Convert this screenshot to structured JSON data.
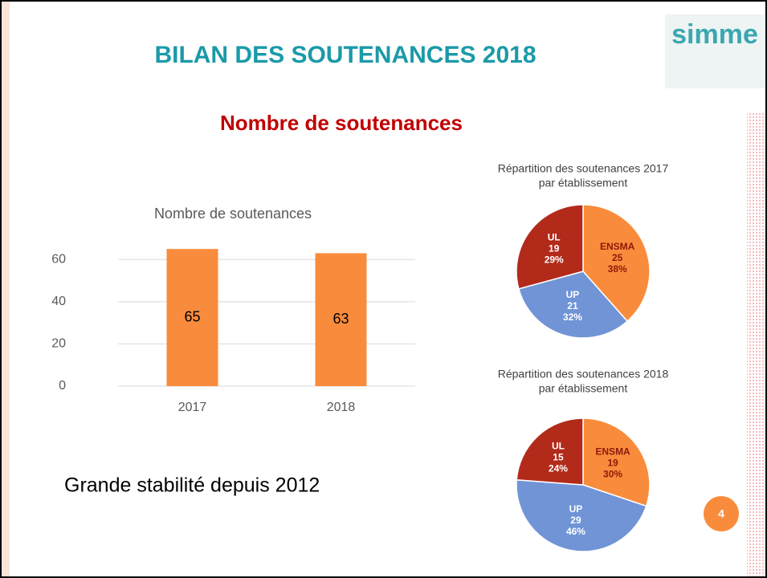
{
  "title": "BILAN DES SOUTENANCES 2018",
  "subtitle": "Nombre de soutenances",
  "note": "Grande stabilité depuis 2012",
  "logo": "simme",
  "page_number": "4",
  "chart_data": [
    {
      "type": "bar",
      "title": "Nombre de soutenances",
      "categories": [
        "2017",
        "2018"
      ],
      "values": [
        65,
        63
      ],
      "color": "#f98c3c",
      "ylim": [
        0,
        70
      ],
      "yticks": [
        0,
        20,
        40,
        60
      ],
      "grid": true
    },
    {
      "type": "pie",
      "title": [
        "Répartition des soutenances 2017",
        "par établissement"
      ],
      "categories": [
        "ENSMA",
        "UP",
        "UL"
      ],
      "values": [
        25,
        21,
        19
      ],
      "percent_labels": [
        "38%",
        "32%",
        "29%"
      ],
      "colors": [
        "#f98c3c",
        "#7094d6",
        "#b22a1a"
      ]
    },
    {
      "type": "pie",
      "title": [
        "Répartition des soutenances 2018",
        "par établissement"
      ],
      "categories": [
        "ENSMA",
        "UP",
        "UL"
      ],
      "values": [
        19,
        29,
        15
      ],
      "percent_labels": [
        "30%",
        "46%",
        "24%"
      ],
      "colors": [
        "#f98c3c",
        "#7094d6",
        "#b22a1a"
      ]
    }
  ]
}
